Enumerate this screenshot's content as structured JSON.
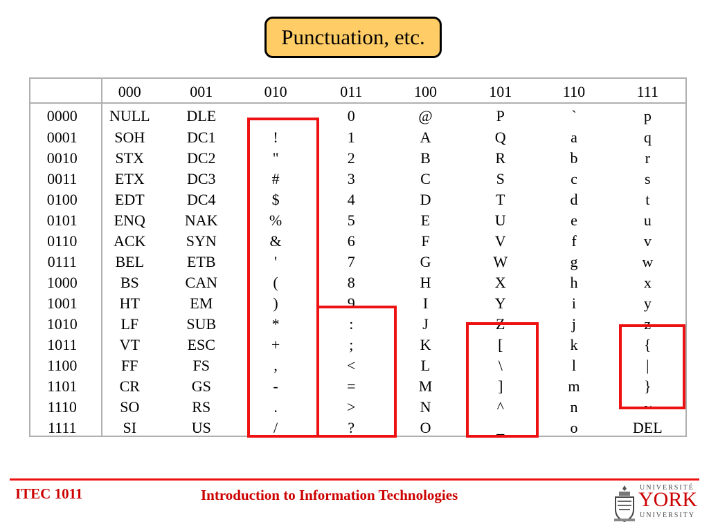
{
  "slide": {
    "title": "Punctuation, etc.",
    "course_code": "ITEC 1011",
    "course_title": "Introduction to Information Technologies"
  },
  "logo": {
    "top": "UNIVERSITÉ",
    "name": "YORK",
    "bottom": "UNIVERSITY",
    "crest_icon": "york-crest-icon"
  },
  "colors": {
    "title_bg": "#ffcc66",
    "highlight": "#ee1111",
    "footer_text": "#cc0000",
    "grid": "#b0b0b0"
  },
  "table": {
    "columns": [
      "000",
      "001",
      "010",
      "011",
      "100",
      "101",
      "110",
      "111"
    ],
    "rows": [
      {
        "code": "0000",
        "cells": [
          "NULL",
          "DLE",
          "",
          "0",
          "@",
          "P",
          "`",
          "p"
        ]
      },
      {
        "code": "0001",
        "cells": [
          "SOH",
          "DC1",
          "!",
          "1",
          "A",
          "Q",
          "a",
          "q"
        ]
      },
      {
        "code": "0010",
        "cells": [
          "STX",
          "DC2",
          "\"",
          "2",
          "B",
          "R",
          "b",
          "r"
        ]
      },
      {
        "code": "0011",
        "cells": [
          "ETX",
          "DC3",
          "#",
          "3",
          "C",
          "S",
          "c",
          "s"
        ]
      },
      {
        "code": "0100",
        "cells": [
          "EDT",
          "DC4",
          "$",
          "4",
          "D",
          "T",
          "d",
          "t"
        ]
      },
      {
        "code": "0101",
        "cells": [
          "ENQ",
          "NAK",
          "%",
          "5",
          "E",
          "U",
          "e",
          "u"
        ]
      },
      {
        "code": "0110",
        "cells": [
          "ACK",
          "SYN",
          "&",
          "6",
          "F",
          "V",
          "f",
          "v"
        ]
      },
      {
        "code": "0111",
        "cells": [
          "BEL",
          "ETB",
          "'",
          "7",
          "G",
          "W",
          "g",
          "w"
        ]
      },
      {
        "code": "1000",
        "cells": [
          "BS",
          "CAN",
          "(",
          "8",
          "H",
          "X",
          "h",
          "x"
        ]
      },
      {
        "code": "1001",
        "cells": [
          "HT",
          "EM",
          ")",
          "9",
          "I",
          "Y",
          "i",
          "y"
        ]
      },
      {
        "code": "1010",
        "cells": [
          "LF",
          "SUB",
          "*",
          ":",
          "J",
          "Z",
          "j",
          "z"
        ]
      },
      {
        "code": "1011",
        "cells": [
          "VT",
          "ESC",
          "+",
          ";",
          "K",
          "[",
          "k",
          "{"
        ]
      },
      {
        "code": "1100",
        "cells": [
          "FF",
          "FS",
          ",",
          "<",
          "L",
          "\\",
          "l",
          "|"
        ]
      },
      {
        "code": "1101",
        "cells": [
          "CR",
          "GS",
          "-",
          "=",
          "M",
          "]",
          "m",
          "}"
        ]
      },
      {
        "code": "1110",
        "cells": [
          "SO",
          "RS",
          ".",
          ">",
          "N",
          "^",
          "n",
          "~"
        ]
      },
      {
        "code": "1111",
        "cells": [
          "SI",
          "US",
          "/",
          "?",
          "O",
          "_",
          "o",
          "DEL"
        ]
      }
    ]
  }
}
